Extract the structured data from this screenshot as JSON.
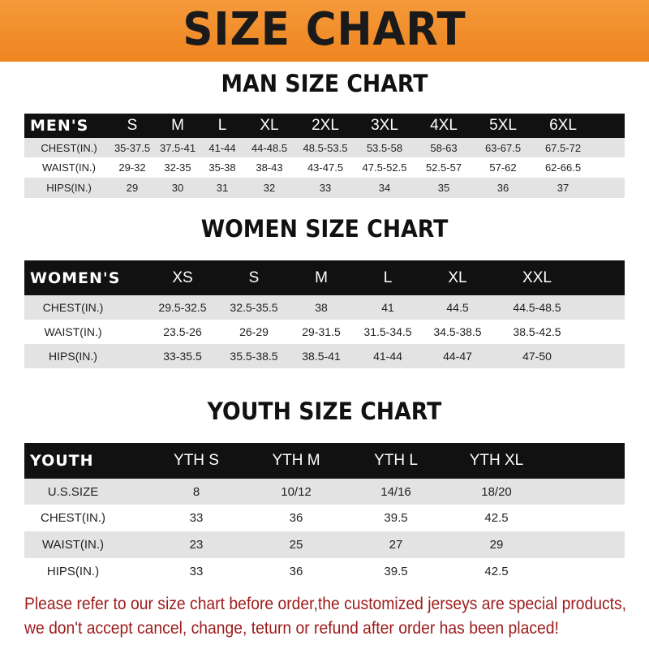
{
  "banner_title": "SIZE CHART",
  "colors": {
    "banner": "#ee8420",
    "header_row": "#111111",
    "stripe": "#e3e3e3",
    "note": "#9e1b1b"
  },
  "men": {
    "title": "MAN SIZE CHART",
    "header": [
      "MEN'S",
      "S",
      "M",
      "L",
      "XL",
      "2XL",
      "3XL",
      "4XL",
      "5XL",
      "6XL"
    ],
    "rows": [
      [
        "CHEST(IN.)",
        "35-37.5",
        "37.5-41",
        "41-44",
        "44-48.5",
        "48.5-53.5",
        "53.5-58",
        "58-63",
        "63-67.5",
        "67.5-72"
      ],
      [
        "WAIST(IN.)",
        "29-32",
        "32-35",
        "35-38",
        "38-43",
        "43-47.5",
        "47.5-52.5",
        "52.5-57",
        "57-62",
        "62-66.5"
      ],
      [
        "HIPS(IN.)",
        "29",
        "30",
        "31",
        "32",
        "33",
        "34",
        "35",
        "36",
        "37"
      ]
    ]
  },
  "women": {
    "title": "WOMEN SIZE CHART",
    "header": [
      "WOMEN'S",
      "XS",
      "S",
      "M",
      "L",
      "XL",
      "XXL"
    ],
    "rows": [
      [
        "CHEST(IN.)",
        "29.5-32.5",
        "32.5-35.5",
        "38",
        "41",
        "44.5",
        "44.5-48.5"
      ],
      [
        "WAIST(IN.)",
        "23.5-26",
        "26-29",
        "29-31.5",
        "31.5-34.5",
        "34.5-38.5",
        "38.5-42.5"
      ],
      [
        "HIPS(IN.)",
        "33-35.5",
        "35.5-38.5",
        "38.5-41",
        "41-44",
        "44-47",
        "47-50"
      ]
    ]
  },
  "youth": {
    "title": "YOUTH SIZE CHART",
    "header": [
      "YOUTH",
      "YTH S",
      "YTH M",
      "YTH L",
      "YTH XL"
    ],
    "rows": [
      [
        "U.S.SIZE",
        "8",
        "10/12",
        "14/16",
        "18/20"
      ],
      [
        "CHEST(IN.)",
        "33",
        "36",
        "39.5",
        "42.5"
      ],
      [
        "WAIST(IN.)",
        "23",
        "25",
        "27",
        "29"
      ],
      [
        "HIPS(IN.)",
        "33",
        "36",
        "39.5",
        "42.5"
      ]
    ]
  },
  "note": {
    "line1": "Please refer to our size chart before order,the customized jerseys are special products,",
    "line2": "we don't accept cancel, change, teturn or refund after order has been placed!"
  }
}
